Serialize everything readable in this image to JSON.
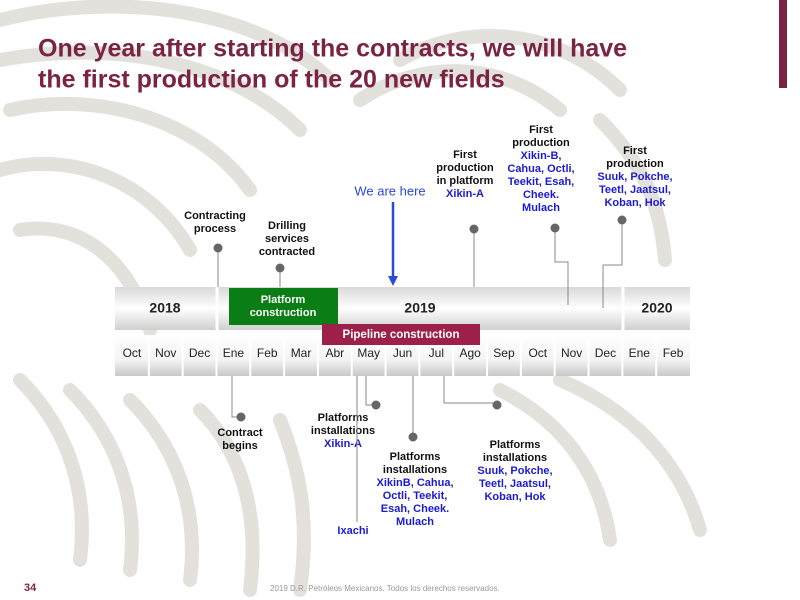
{
  "title": {
    "lines": [
      "One year after starting the contracts, we will have",
      "the first production of the 20 new fields"
    ]
  },
  "years": [
    "2018",
    "2019",
    "2020"
  ],
  "months": [
    "Oct",
    "Nov",
    "Dec",
    "Ene",
    "Feb",
    "Mar",
    "Abr",
    "May",
    "Jun",
    "Jul",
    "Ago",
    "Sep",
    "Oct",
    "Nov",
    "Dec",
    "Ene",
    "Feb"
  ],
  "bars": [
    {
      "label": "Platform construction",
      "lines": [
        "Platform",
        "construction"
      ]
    },
    {
      "label": "Pipeline construction",
      "lines": [
        "Pipeline construction"
      ]
    }
  ],
  "we_are_here": "We are here",
  "events_above": [
    {
      "lines": [
        "Contracting",
        "process"
      ],
      "fields": []
    },
    {
      "lines": [
        "Drilling",
        "services",
        "contracted"
      ],
      "fields": []
    },
    {
      "lines": [
        "First",
        "production",
        "in platform"
      ],
      "fields": [
        "Xikin-A"
      ]
    },
    {
      "lines": [
        "First",
        "production"
      ],
      "fields": [
        "Xikin-B,",
        "Cahua, Octli,",
        "Teekit, Esah,",
        "Cheek.",
        "Mulach"
      ]
    },
    {
      "lines": [
        "First",
        "production"
      ],
      "fields": [
        "Suuk, Pokche,",
        "Teetl, Jaatsul,",
        "Koban, Hok"
      ]
    }
  ],
  "events_below": [
    {
      "lines": [
        "Contract",
        "begins"
      ],
      "fields": []
    },
    {
      "lines": [
        "Platforms",
        "installations"
      ],
      "fields": [
        "Xikin-A"
      ]
    },
    {
      "lines": [
        "Platforms",
        "installations"
      ],
      "fields": [
        "XikinB, Cahua,",
        "Octli, Teekit,",
        "Esah, Cheek.",
        "Mulach"
      ]
    },
    {
      "lines": [],
      "fields": [
        "Ixachi"
      ]
    },
    {
      "lines": [
        "Platforms",
        "installations"
      ],
      "fields": [
        "Suuk, Pokche,",
        "Teetl, Jaatsul,",
        "Koban, Hok"
      ]
    }
  ],
  "footer": {
    "page": "34",
    "copyright": "2019 D.R. Petróleos Mexicanos. Todos los derechos reservados."
  }
}
